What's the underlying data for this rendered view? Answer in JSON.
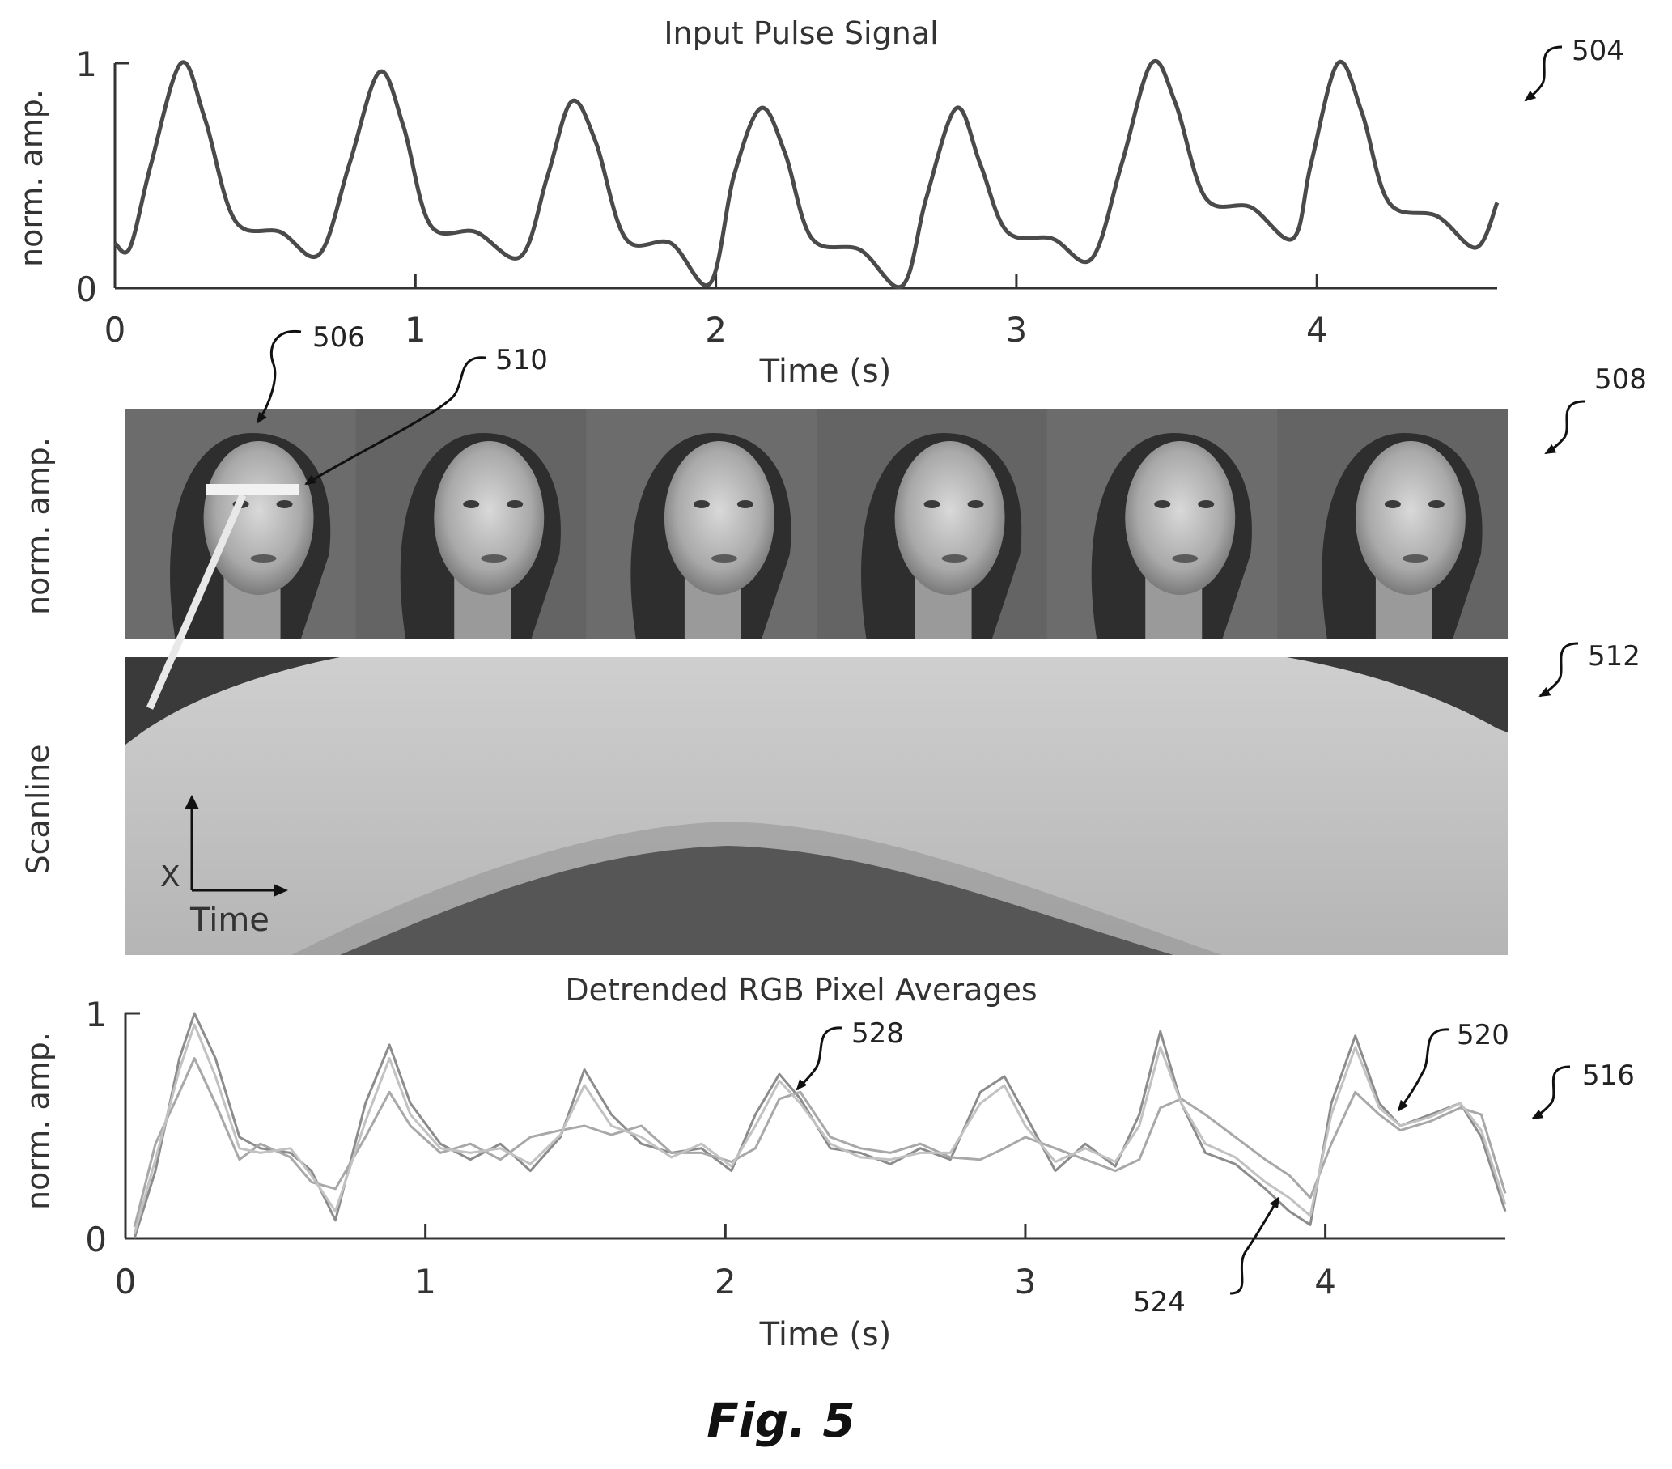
{
  "figure_caption": "Fig. 5",
  "reference_numerals": {
    "pulse_panel": "504",
    "frames_panel": "508",
    "scanline_panel": "512",
    "rgb_panel": "516",
    "region_pointer": "506",
    "scanline_pointer": "510",
    "series_a_pointer": "520",
    "series_b_pointer": "524",
    "series_c_pointer": "528"
  },
  "frames_panel": {
    "ylabel": "norm. amp.",
    "frame_count": 6
  },
  "scanline_panel": {
    "ylabel": "Scanline",
    "axis_x_label": "X",
    "axis_time_label": "Time"
  },
  "chart_data": [
    {
      "type": "line",
      "title": "Input Pulse Signal",
      "xlabel": "Time (s)",
      "ylabel": "norm. amp.",
      "xlim": [
        0,
        4.6
      ],
      "ylim": [
        0,
        1
      ],
      "x_ticks": [
        "0",
        "1",
        "2",
        "3",
        "4"
      ],
      "y_ticks": [
        "0",
        "1"
      ],
      "grid": false,
      "series": [
        {
          "color": "#4a4a4a",
          "x": [
            0.0,
            0.05,
            0.12,
            0.22,
            0.3,
            0.4,
            0.55,
            0.68,
            0.78,
            0.88,
            0.96,
            1.05,
            1.2,
            1.35,
            1.44,
            1.52,
            1.6,
            1.7,
            1.85,
            1.98,
            2.06,
            2.15,
            2.23,
            2.32,
            2.48,
            2.62,
            2.7,
            2.8,
            2.88,
            2.97,
            3.12,
            3.25,
            3.35,
            3.45,
            3.53,
            3.63,
            3.78,
            3.92,
            3.98,
            4.07,
            4.15,
            4.24,
            4.4,
            4.53,
            4.6
          ],
          "y": [
            0.2,
            0.18,
            0.55,
            1.0,
            0.75,
            0.3,
            0.25,
            0.15,
            0.55,
            0.96,
            0.72,
            0.28,
            0.25,
            0.14,
            0.5,
            0.83,
            0.65,
            0.22,
            0.2,
            0.02,
            0.5,
            0.8,
            0.6,
            0.22,
            0.17,
            0.01,
            0.4,
            0.8,
            0.55,
            0.25,
            0.22,
            0.13,
            0.55,
            1.0,
            0.82,
            0.4,
            0.36,
            0.22,
            0.55,
            1.0,
            0.78,
            0.38,
            0.32,
            0.18,
            0.38
          ]
        }
      ]
    },
    {
      "type": "line",
      "title": "Detrended RGB Pixel Averages",
      "xlabel": "Time (s)",
      "ylabel": "norm. amp.",
      "xlim": [
        0,
        4.6
      ],
      "ylim": [
        0,
        1
      ],
      "x_ticks": [
        "0",
        "1",
        "2",
        "3",
        "4"
      ],
      "y_ticks": [
        "0",
        "1"
      ],
      "grid": false,
      "series": [
        {
          "color": "#8c8c8c",
          "x": [
            0.03,
            0.1,
            0.18,
            0.23,
            0.3,
            0.38,
            0.45,
            0.55,
            0.62,
            0.7,
            0.8,
            0.88,
            0.95,
            1.05,
            1.15,
            1.25,
            1.35,
            1.45,
            1.53,
            1.62,
            1.72,
            1.82,
            1.92,
            2.02,
            2.1,
            2.18,
            2.25,
            2.35,
            2.45,
            2.55,
            2.65,
            2.75,
            2.85,
            2.93,
            3.0,
            3.1,
            3.2,
            3.3,
            3.38,
            3.45,
            3.52,
            3.6,
            3.7,
            3.8,
            3.88,
            3.95,
            4.02,
            4.1,
            4.18,
            4.25,
            4.35,
            4.45,
            4.52,
            4.6
          ],
          "y": [
            0.0,
            0.3,
            0.8,
            1.0,
            0.8,
            0.45,
            0.4,
            0.38,
            0.3,
            0.08,
            0.6,
            0.86,
            0.6,
            0.42,
            0.35,
            0.42,
            0.3,
            0.45,
            0.75,
            0.55,
            0.42,
            0.38,
            0.4,
            0.3,
            0.55,
            0.73,
            0.62,
            0.4,
            0.38,
            0.33,
            0.4,
            0.35,
            0.65,
            0.72,
            0.55,
            0.3,
            0.42,
            0.32,
            0.55,
            0.92,
            0.6,
            0.38,
            0.33,
            0.22,
            0.12,
            0.06,
            0.6,
            0.9,
            0.6,
            0.5,
            0.55,
            0.6,
            0.45,
            0.12
          ]
        },
        {
          "color": "#a8a8a8",
          "x": [
            0.03,
            0.1,
            0.18,
            0.23,
            0.3,
            0.38,
            0.45,
            0.55,
            0.62,
            0.7,
            0.8,
            0.88,
            0.95,
            1.05,
            1.15,
            1.25,
            1.35,
            1.45,
            1.53,
            1.62,
            1.72,
            1.82,
            1.92,
            2.02,
            2.1,
            2.18,
            2.25,
            2.35,
            2.45,
            2.55,
            2.65,
            2.75,
            2.85,
            2.93,
            3.0,
            3.1,
            3.2,
            3.3,
            3.38,
            3.45,
            3.52,
            3.6,
            3.7,
            3.8,
            3.88,
            3.95,
            4.02,
            4.1,
            4.18,
            4.25,
            4.35,
            4.45,
            4.52,
            4.6
          ],
          "y": [
            0.05,
            0.42,
            0.65,
            0.8,
            0.6,
            0.35,
            0.42,
            0.36,
            0.25,
            0.22,
            0.45,
            0.65,
            0.5,
            0.38,
            0.42,
            0.35,
            0.45,
            0.48,
            0.5,
            0.46,
            0.5,
            0.38,
            0.38,
            0.34,
            0.4,
            0.62,
            0.65,
            0.45,
            0.4,
            0.38,
            0.42,
            0.36,
            0.35,
            0.4,
            0.45,
            0.4,
            0.35,
            0.3,
            0.35,
            0.58,
            0.62,
            0.55,
            0.45,
            0.35,
            0.28,
            0.18,
            0.42,
            0.65,
            0.55,
            0.48,
            0.52,
            0.58,
            0.55,
            0.2
          ]
        },
        {
          "color": "#c2c2c2",
          "x": [
            0.03,
            0.1,
            0.18,
            0.23,
            0.3,
            0.38,
            0.45,
            0.55,
            0.62,
            0.7,
            0.8,
            0.88,
            0.95,
            1.05,
            1.15,
            1.25,
            1.35,
            1.45,
            1.53,
            1.62,
            1.72,
            1.82,
            1.92,
            2.02,
            2.1,
            2.18,
            2.25,
            2.35,
            2.45,
            2.55,
            2.65,
            2.75,
            2.85,
            2.93,
            3.0,
            3.1,
            3.2,
            3.3,
            3.38,
            3.45,
            3.52,
            3.6,
            3.7,
            3.8,
            3.88,
            3.95,
            4.02,
            4.1,
            4.18,
            4.25,
            4.35,
            4.45,
            4.52,
            4.6
          ],
          "y": [
            0.02,
            0.35,
            0.75,
            0.95,
            0.72,
            0.4,
            0.38,
            0.4,
            0.28,
            0.12,
            0.52,
            0.8,
            0.55,
            0.4,
            0.38,
            0.4,
            0.33,
            0.46,
            0.68,
            0.5,
            0.45,
            0.36,
            0.42,
            0.32,
            0.5,
            0.7,
            0.6,
            0.42,
            0.36,
            0.35,
            0.38,
            0.38,
            0.6,
            0.68,
            0.5,
            0.34,
            0.4,
            0.34,
            0.5,
            0.85,
            0.6,
            0.42,
            0.36,
            0.25,
            0.18,
            0.1,
            0.55,
            0.85,
            0.58,
            0.5,
            0.54,
            0.6,
            0.48,
            0.15
          ]
        }
      ]
    }
  ]
}
